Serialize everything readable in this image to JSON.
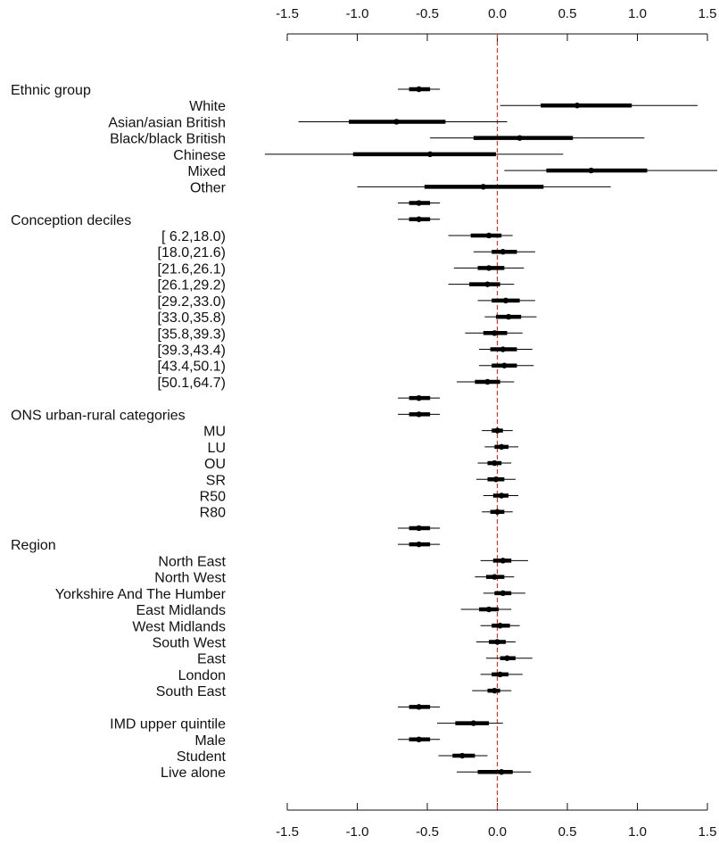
{
  "chart_data": {
    "type": "forest",
    "xlim": [
      -1.5,
      1.5
    ],
    "xticks": [
      -1.5,
      -1.0,
      -0.5,
      0.0,
      0.5,
      1.0,
      1.5
    ],
    "xtick_labels": [
      "-1.5",
      "-1.0",
      "-0.5",
      "0.0",
      "0.5",
      "1.0",
      "1.5"
    ],
    "reference_line": 0.0,
    "reference_color": "#c0392b",
    "axis_position": "top and bottom",
    "rows": [
      {
        "label": "Ethnic group",
        "header": true,
        "est": -0.56,
        "inner": [
          -0.63,
          -0.48
        ],
        "outer": [
          -0.71,
          -0.41
        ]
      },
      {
        "label": "White",
        "header": false,
        "est": 0.57,
        "inner": [
          0.31,
          0.96
        ],
        "outer": [
          0.02,
          1.43
        ]
      },
      {
        "label": "Asian/asian British",
        "header": false,
        "est": -0.72,
        "inner": [
          -1.06,
          -0.37
        ],
        "outer": [
          -1.42,
          0.07
        ]
      },
      {
        "label": "Black/black British",
        "header": false,
        "est": 0.16,
        "inner": [
          -0.17,
          0.54
        ],
        "outer": [
          -0.48,
          1.05
        ]
      },
      {
        "label": "Chinese",
        "header": false,
        "est": -0.48,
        "inner": [
          -1.03,
          -0.01
        ],
        "outer": [
          -1.66,
          0.47
        ]
      },
      {
        "label": "Mixed",
        "header": false,
        "est": 0.67,
        "inner": [
          0.35,
          1.07
        ],
        "outer": [
          0.05,
          1.57
        ]
      },
      {
        "label": "Other",
        "header": false,
        "est": -0.1,
        "inner": [
          -0.52,
          0.33
        ],
        "outer": [
          -1.0,
          0.81
        ]
      },
      {
        "label": "",
        "header": false,
        "est": -0.56,
        "inner": [
          -0.63,
          -0.48
        ],
        "outer": [
          -0.71,
          -0.41
        ]
      },
      {
        "label": "Conception deciles",
        "header": true,
        "est": -0.56,
        "inner": [
          -0.63,
          -0.48
        ],
        "outer": [
          -0.71,
          -0.41
        ]
      },
      {
        "label": "[ 6.2,18.0)",
        "header": false,
        "est": -0.06,
        "inner": [
          -0.19,
          0.03
        ],
        "outer": [
          -0.35,
          0.11
        ]
      },
      {
        "label": "[18.0,21.6)",
        "header": false,
        "est": 0.04,
        "inner": [
          -0.04,
          0.14
        ],
        "outer": [
          -0.17,
          0.27
        ]
      },
      {
        "label": "[21.6,26.1)",
        "header": false,
        "est": -0.06,
        "inner": [
          -0.14,
          0.05
        ],
        "outer": [
          -0.31,
          0.19
        ]
      },
      {
        "label": "[26.1,29.2)",
        "header": false,
        "est": -0.07,
        "inner": [
          -0.2,
          0.02
        ],
        "outer": [
          -0.35,
          0.12
        ]
      },
      {
        "label": "[29.2,33.0)",
        "header": false,
        "est": 0.06,
        "inner": [
          -0.04,
          0.16
        ],
        "outer": [
          -0.14,
          0.27
        ]
      },
      {
        "label": "[33.0,35.8)",
        "header": false,
        "est": 0.08,
        "inner": [
          -0.01,
          0.17
        ],
        "outer": [
          -0.09,
          0.28
        ]
      },
      {
        "label": "[35.8,39.3)",
        "header": false,
        "est": -0.02,
        "inner": [
          -0.1,
          0.07
        ],
        "outer": [
          -0.23,
          0.18
        ]
      },
      {
        "label": "[39.3,43.4)",
        "header": false,
        "est": 0.04,
        "inner": [
          -0.05,
          0.14
        ],
        "outer": [
          -0.13,
          0.25
        ]
      },
      {
        "label": "[43.4,50.1)",
        "header": false,
        "est": 0.05,
        "inner": [
          -0.04,
          0.14
        ],
        "outer": [
          -0.13,
          0.26
        ]
      },
      {
        "label": "[50.1,64.7)",
        "header": false,
        "est": -0.07,
        "inner": [
          -0.16,
          0.02
        ],
        "outer": [
          -0.29,
          0.12
        ]
      },
      {
        "label": "",
        "header": false,
        "est": -0.56,
        "inner": [
          -0.63,
          -0.48
        ],
        "outer": [
          -0.71,
          -0.41
        ]
      },
      {
        "label": "ONS urban-rural categories",
        "header": true,
        "est": -0.56,
        "inner": [
          -0.63,
          -0.48
        ],
        "outer": [
          -0.71,
          -0.41
        ]
      },
      {
        "label": "MU",
        "header": false,
        "est": 0.0,
        "inner": [
          -0.04,
          0.04
        ],
        "outer": [
          -0.11,
          0.11
        ]
      },
      {
        "label": "LU",
        "header": false,
        "est": 0.03,
        "inner": [
          -0.02,
          0.08
        ],
        "outer": [
          -0.09,
          0.15
        ]
      },
      {
        "label": "OU",
        "header": false,
        "est": -0.02,
        "inner": [
          -0.07,
          0.03
        ],
        "outer": [
          -0.14,
          0.1
        ]
      },
      {
        "label": "SR",
        "header": false,
        "est": -0.01,
        "inner": [
          -0.07,
          0.05
        ],
        "outer": [
          -0.15,
          0.13
        ]
      },
      {
        "label": "R50",
        "header": false,
        "est": 0.03,
        "inner": [
          -0.03,
          0.08
        ],
        "outer": [
          -0.1,
          0.15
        ]
      },
      {
        "label": "R80",
        "header": false,
        "est": 0.0,
        "inner": [
          -0.05,
          0.05
        ],
        "outer": [
          -0.11,
          0.11
        ]
      },
      {
        "label": "",
        "header": false,
        "est": -0.56,
        "inner": [
          -0.63,
          -0.48
        ],
        "outer": [
          -0.71,
          -0.41
        ]
      },
      {
        "label": "Region",
        "header": true,
        "est": -0.56,
        "inner": [
          -0.63,
          -0.48
        ],
        "outer": [
          -0.71,
          -0.41
        ]
      },
      {
        "label": "North East",
        "header": false,
        "est": 0.04,
        "inner": [
          -0.03,
          0.1
        ],
        "outer": [
          -0.12,
          0.22
        ]
      },
      {
        "label": "North West",
        "header": false,
        "est": -0.02,
        "inner": [
          -0.08,
          0.05
        ],
        "outer": [
          -0.16,
          0.12
        ]
      },
      {
        "label": "Yorkshire And The Humber",
        "header": false,
        "est": 0.04,
        "inner": [
          -0.02,
          0.1
        ],
        "outer": [
          -0.1,
          0.2
        ]
      },
      {
        "label": "East Midlands",
        "header": false,
        "est": -0.06,
        "inner": [
          -0.13,
          0.01
        ],
        "outer": [
          -0.26,
          0.1
        ]
      },
      {
        "label": "West Midlands",
        "header": false,
        "est": 0.02,
        "inner": [
          -0.04,
          0.09
        ],
        "outer": [
          -0.12,
          0.16
        ]
      },
      {
        "label": "South West",
        "header": false,
        "est": 0.0,
        "inner": [
          -0.06,
          0.06
        ],
        "outer": [
          -0.15,
          0.13
        ]
      },
      {
        "label": "East",
        "header": false,
        "est": 0.07,
        "inner": [
          0.02,
          0.13
        ],
        "outer": [
          -0.08,
          0.25
        ]
      },
      {
        "label": "London",
        "header": false,
        "est": 0.02,
        "inner": [
          -0.04,
          0.08
        ],
        "outer": [
          -0.12,
          0.18
        ]
      },
      {
        "label": "South East",
        "header": false,
        "est": -0.02,
        "inner": [
          -0.07,
          0.02
        ],
        "outer": [
          -0.18,
          0.1
        ]
      },
      {
        "label": "",
        "header": false,
        "est": -0.56,
        "inner": [
          -0.63,
          -0.48
        ],
        "outer": [
          -0.71,
          -0.41
        ]
      },
      {
        "label": "IMD upper quintile",
        "header": false,
        "est": -0.17,
        "inner": [
          -0.3,
          -0.06
        ],
        "outer": [
          -0.43,
          0.04
        ]
      },
      {
        "label": "Male",
        "header": false,
        "est": -0.56,
        "inner": [
          -0.63,
          -0.48
        ],
        "outer": [
          -0.71,
          -0.41
        ]
      },
      {
        "label": "Student",
        "header": false,
        "est": -0.25,
        "inner": [
          -0.32,
          -0.16
        ],
        "outer": [
          -0.42,
          -0.07
        ]
      },
      {
        "label": "Live alone",
        "header": false,
        "est": 0.03,
        "inner": [
          -0.14,
          0.11
        ],
        "outer": [
          -0.29,
          0.24
        ]
      }
    ]
  }
}
